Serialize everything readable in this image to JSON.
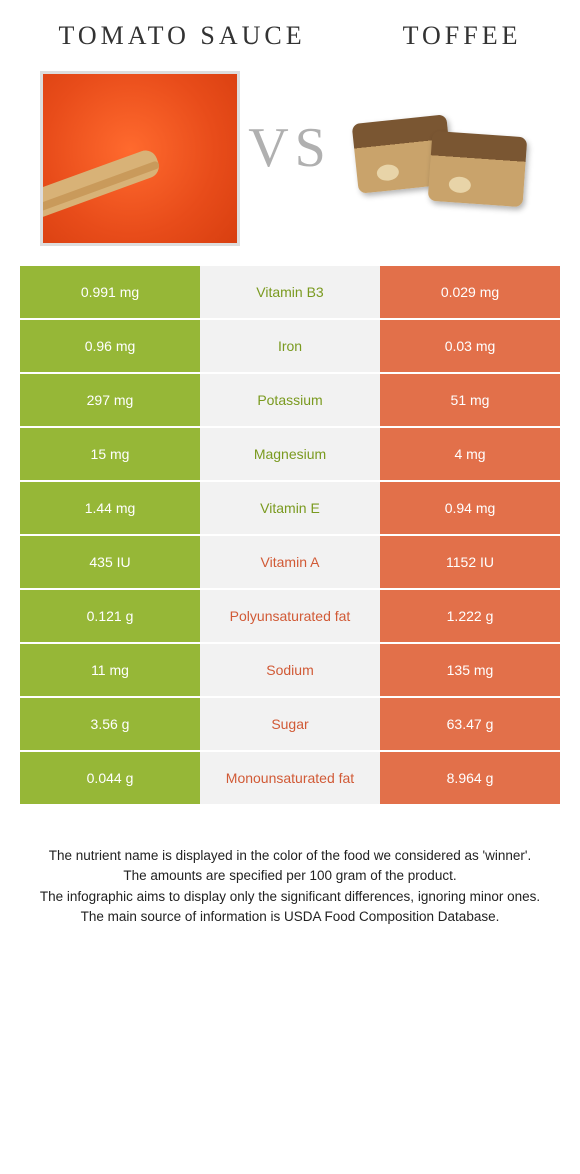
{
  "colors": {
    "green": "#96b737",
    "orange": "#e2704a",
    "mid_bg": "#f2f2f2",
    "text_green": "#7a9a1f",
    "text_orange": "#d15a36"
  },
  "header": {
    "left_title": "Tomato sauce",
    "right_title": "Toffee",
    "vs": "VS"
  },
  "rows": [
    {
      "left": "0.991 mg",
      "label": "Vitamin B3",
      "right": "0.029 mg",
      "winner": "left"
    },
    {
      "left": "0.96 mg",
      "label": "Iron",
      "right": "0.03 mg",
      "winner": "left"
    },
    {
      "left": "297 mg",
      "label": "Potassium",
      "right": "51 mg",
      "winner": "left"
    },
    {
      "left": "15 mg",
      "label": "Magnesium",
      "right": "4 mg",
      "winner": "left"
    },
    {
      "left": "1.44 mg",
      "label": "Vitamin E",
      "right": "0.94 mg",
      "winner": "left"
    },
    {
      "left": "435 IU",
      "label": "Vitamin A",
      "right": "1152 IU",
      "winner": "right"
    },
    {
      "left": "0.121 g",
      "label": "Polyunsaturated fat",
      "right": "1.222 g",
      "winner": "right"
    },
    {
      "left": "11 mg",
      "label": "Sodium",
      "right": "135 mg",
      "winner": "right"
    },
    {
      "left": "3.56 g",
      "label": "Sugar",
      "right": "63.47 g",
      "winner": "right"
    },
    {
      "left": "0.044 g",
      "label": "Monounsaturated fat",
      "right": "8.964 g",
      "winner": "right"
    }
  ],
  "footer": {
    "l1": "The nutrient name is displayed in the color of the food we considered as 'winner'.",
    "l2": "The amounts are specified per 100 gram of the product.",
    "l3": "The infographic aims to display only the significant differences, ignoring minor ones.",
    "l4": "The main source of information is USDA Food Composition Database."
  }
}
